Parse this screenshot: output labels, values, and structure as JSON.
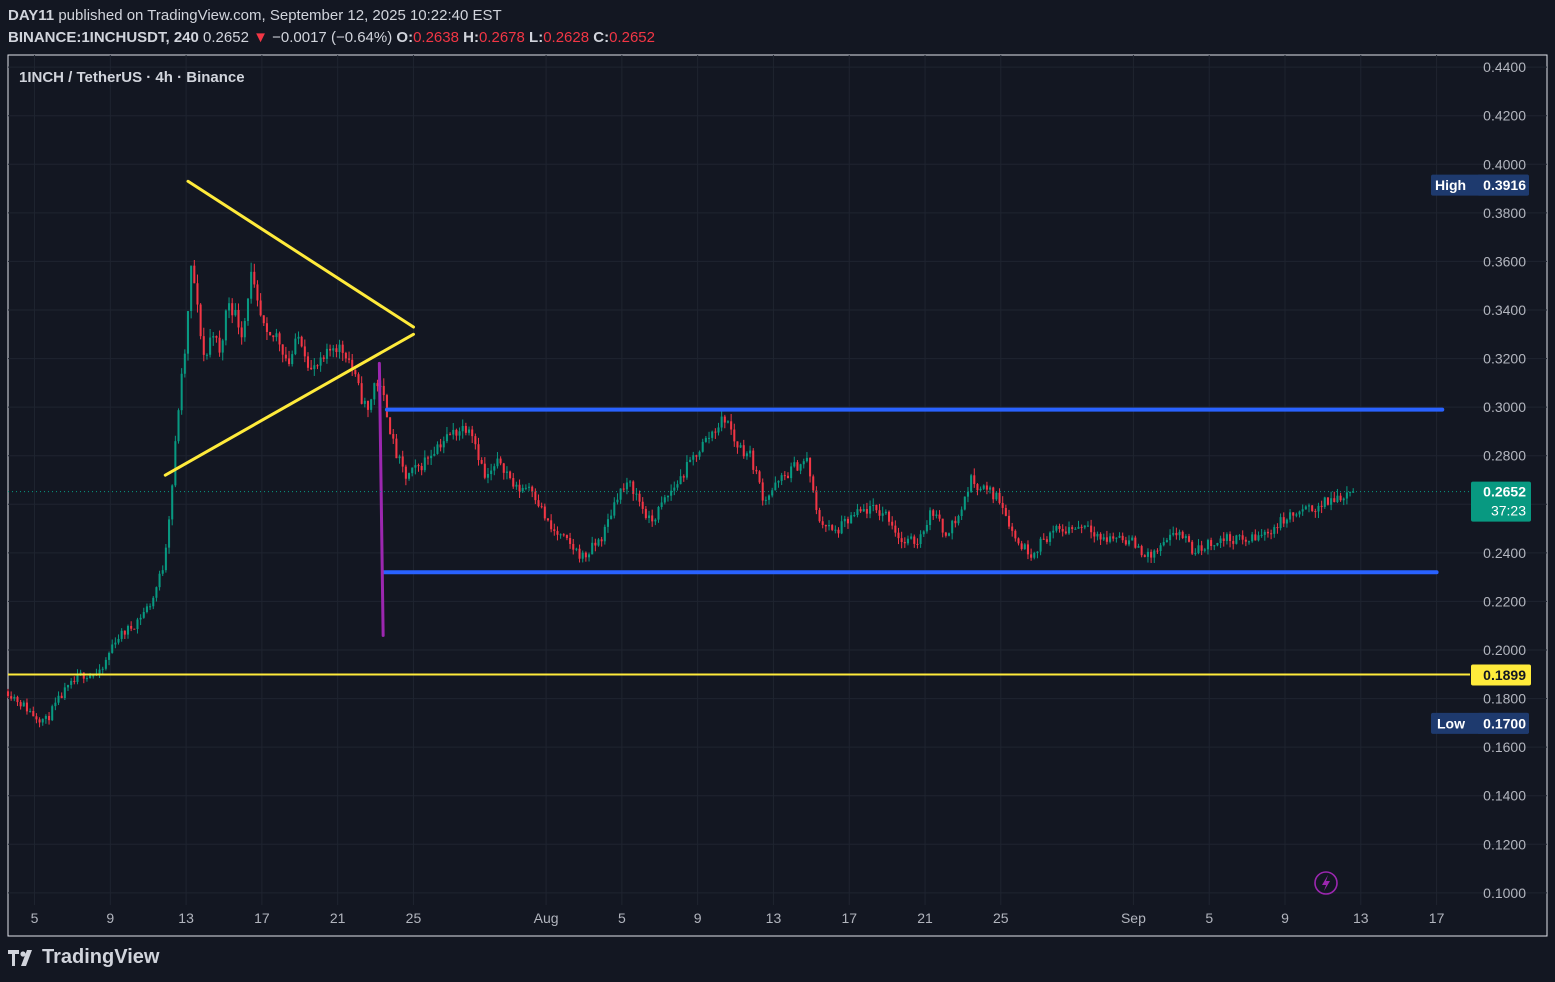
{
  "header": {
    "author": "DAY11",
    "published_text": "published on TradingView.com, September 12, 2025 10:22:40 EST",
    "symbol": "BINANCE:1INCHUSDT, 240",
    "last": "0.2652",
    "change_arrow": "▼",
    "change": "−0.0017 (−0.64%)",
    "o_label": "O:",
    "o": "0.2638",
    "h_label": "H:",
    "h": "0.2678",
    "l_label": "L:",
    "l": "0.2628",
    "c_label": "C:",
    "c": "0.2652"
  },
  "pane_title": "1INCH / TetherUS · 4h · Binance",
  "footer": {
    "brand": "TradingView"
  },
  "colors": {
    "background": "#131722",
    "up": "#089981",
    "down": "#f23645",
    "triangle": "#ffeb3b",
    "range_lines": "#2962ff",
    "breakdown_line": "#9c27b0",
    "level_line": "#ffeb3b",
    "high_low_badge": "#1e3a6e",
    "last_price_badge": "#089981"
  },
  "badges": {
    "high_label": "High",
    "high_value": "0.3916",
    "low_label": "Low",
    "low_value": "0.1700",
    "level_value": "0.1899",
    "last_value": "0.2652",
    "countdown": "37:23"
  },
  "chart_data": {
    "type": "candlestick",
    "symbol": "1INCH / TetherUS",
    "interval": "4h",
    "exchange": "Binance",
    "y_ticks": [
      "0.4400",
      "0.4200",
      "0.4000",
      "0.3800",
      "0.3600",
      "0.3400",
      "0.3200",
      "0.3000",
      "0.2800",
      "0.2600",
      "0.2400",
      "0.2200",
      "0.2000",
      "0.1800",
      "0.1600",
      "0.1400",
      "0.1200",
      "0.1000"
    ],
    "ylim": [
      0.095,
      0.445
    ],
    "x_ticks": [
      {
        "label": "5",
        "day": 5
      },
      {
        "label": "9",
        "day": 9
      },
      {
        "label": "13",
        "day": 13
      },
      {
        "label": "17",
        "day": 17
      },
      {
        "label": "21",
        "day": 21
      },
      {
        "label": "25",
        "day": 25
      },
      {
        "label": "Aug",
        "day": 32
      },
      {
        "label": "5",
        "day": 36
      },
      {
        "label": "9",
        "day": 40
      },
      {
        "label": "13",
        "day": 44
      },
      {
        "label": "17",
        "day": 48
      },
      {
        "label": "21",
        "day": 52
      },
      {
        "label": "25",
        "day": 56
      },
      {
        "label": "Sep",
        "day": 63
      },
      {
        "label": "5",
        "day": 67
      },
      {
        "label": "9",
        "day": 71
      },
      {
        "label": "13",
        "day": 75
      },
      {
        "label": "17",
        "day": 79
      }
    ],
    "xlim_days": [
      3.6,
      80.5
    ],
    "price_path": [
      [
        3.6,
        0.183
      ],
      [
        5,
        0.173
      ],
      [
        5.6,
        0.171
      ],
      [
        6.5,
        0.182
      ],
      [
        7.5,
        0.19
      ],
      [
        8.5,
        0.19
      ],
      [
        9.2,
        0.204
      ],
      [
        10.2,
        0.21
      ],
      [
        11.2,
        0.22
      ],
      [
        11.8,
        0.235
      ],
      [
        12.2,
        0.262
      ],
      [
        12.6,
        0.3
      ],
      [
        13.0,
        0.327
      ],
      [
        13.3,
        0.36
      ],
      [
        13.6,
        0.34
      ],
      [
        14.0,
        0.318
      ],
      [
        14.4,
        0.333
      ],
      [
        14.8,
        0.32
      ],
      [
        15.2,
        0.345
      ],
      [
        15.6,
        0.338
      ],
      [
        16.0,
        0.33
      ],
      [
        16.4,
        0.355
      ],
      [
        16.8,
        0.34
      ],
      [
        17.3,
        0.327
      ],
      [
        17.8,
        0.33
      ],
      [
        18.4,
        0.318
      ],
      [
        19.0,
        0.33
      ],
      [
        19.6,
        0.315
      ],
      [
        20.2,
        0.318
      ],
      [
        20.8,
        0.326
      ],
      [
        21.5,
        0.322
      ],
      [
        22.2,
        0.305
      ],
      [
        22.6,
        0.298
      ],
      [
        23.0,
        0.312
      ],
      [
        23.5,
        0.302
      ],
      [
        24.0,
        0.282
      ],
      [
        24.6,
        0.271
      ],
      [
        25.4,
        0.276
      ],
      [
        26.2,
        0.284
      ],
      [
        27.2,
        0.29
      ],
      [
        28.0,
        0.293
      ],
      [
        28.8,
        0.27
      ],
      [
        29.6,
        0.278
      ],
      [
        30.4,
        0.266
      ],
      [
        31.2,
        0.268
      ],
      [
        32.2,
        0.25
      ],
      [
        33.0,
        0.245
      ],
      [
        34.0,
        0.238
      ],
      [
        35.0,
        0.247
      ],
      [
        35.8,
        0.265
      ],
      [
        36.5,
        0.268
      ],
      [
        37.5,
        0.252
      ],
      [
        38.3,
        0.262
      ],
      [
        39.2,
        0.272
      ],
      [
        40.0,
        0.282
      ],
      [
        41.0,
        0.292
      ],
      [
        41.5,
        0.296
      ],
      [
        42.0,
        0.285
      ],
      [
        42.8,
        0.28
      ],
      [
        43.5,
        0.262
      ],
      [
        44.4,
        0.27
      ],
      [
        45.2,
        0.276
      ],
      [
        45.8,
        0.278
      ],
      [
        46.3,
        0.255
      ],
      [
        47.2,
        0.248
      ],
      [
        48.2,
        0.255
      ],
      [
        49.0,
        0.258
      ],
      [
        50.0,
        0.256
      ],
      [
        50.8,
        0.244
      ],
      [
        51.6,
        0.245
      ],
      [
        52.4,
        0.258
      ],
      [
        53.0,
        0.248
      ],
      [
        53.8,
        0.255
      ],
      [
        54.4,
        0.27
      ],
      [
        55.2,
        0.266
      ],
      [
        56.0,
        0.262
      ],
      [
        56.8,
        0.245
      ],
      [
        57.6,
        0.24
      ],
      [
        58.6,
        0.248
      ],
      [
        59.6,
        0.25
      ],
      [
        60.6,
        0.252
      ],
      [
        61.4,
        0.245
      ],
      [
        62.2,
        0.247
      ],
      [
        63.0,
        0.244
      ],
      [
        63.8,
        0.238
      ],
      [
        64.6,
        0.243
      ],
      [
        65.4,
        0.249
      ],
      [
        66.2,
        0.24
      ],
      [
        67.0,
        0.244
      ],
      [
        68.0,
        0.246
      ],
      [
        69.0,
        0.245
      ],
      [
        70.0,
        0.248
      ],
      [
        71.0,
        0.254
      ],
      [
        72.0,
        0.257
      ],
      [
        73.0,
        0.26
      ],
      [
        73.8,
        0.263
      ],
      [
        74.3,
        0.265
      ],
      [
        74.7,
        0.2652
      ]
    ],
    "drawings": {
      "triangle_upper": [
        [
          13.1,
          0.393
        ],
        [
          25.0,
          0.333
        ]
      ],
      "triangle_lower": [
        [
          11.9,
          0.272
        ],
        [
          25.0,
          0.33
        ]
      ],
      "range_top": [
        [
          23.6,
          0.299
        ],
        [
          79.3,
          0.299
        ]
      ],
      "range_bottom": [
        [
          23.4,
          0.232
        ],
        [
          79.0,
          0.232
        ]
      ],
      "breakdown": [
        [
          23.2,
          0.318
        ],
        [
          23.4,
          0.206
        ]
      ],
      "support_level": 0.1899
    },
    "session_high": 0.3916,
    "session_low": 0.17,
    "last_price": 0.2652
  }
}
